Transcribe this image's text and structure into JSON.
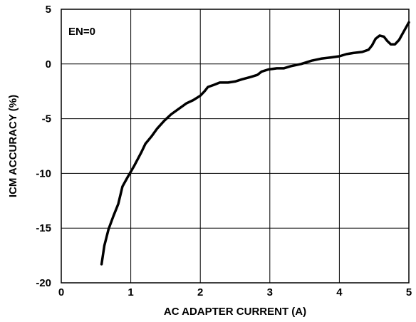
{
  "chart_data": {
    "type": "line",
    "xlabel": "AC ADAPTER CURRENT (A)",
    "ylabel": "ICM ACCURACY (%)",
    "xlim": [
      0,
      5
    ],
    "ylim": [
      -20,
      5
    ],
    "xticks": [
      0,
      1,
      2,
      3,
      4,
      5
    ],
    "yticks": [
      5,
      0,
      -5,
      -10,
      -15,
      -20
    ],
    "grid": true,
    "annotation": "EN=0",
    "series": [
      {
        "color": "#000000",
        "points": [
          [
            0.58,
            -18.3
          ],
          [
            0.62,
            -16.6
          ],
          [
            0.68,
            -15.1
          ],
          [
            0.75,
            -13.9
          ],
          [
            0.82,
            -12.8
          ],
          [
            0.88,
            -11.2
          ],
          [
            0.95,
            -10.4
          ],
          [
            1.05,
            -9.3
          ],
          [
            1.15,
            -8.1
          ],
          [
            1.21,
            -7.3
          ],
          [
            1.3,
            -6.6
          ],
          [
            1.38,
            -5.9
          ],
          [
            1.48,
            -5.2
          ],
          [
            1.58,
            -4.6
          ],
          [
            1.69,
            -4.1
          ],
          [
            1.8,
            -3.6
          ],
          [
            1.9,
            -3.3
          ],
          [
            2.0,
            -2.9
          ],
          [
            2.06,
            -2.5
          ],
          [
            2.11,
            -2.1
          ],
          [
            2.2,
            -1.9
          ],
          [
            2.28,
            -1.7
          ],
          [
            2.4,
            -1.7
          ],
          [
            2.5,
            -1.6
          ],
          [
            2.6,
            -1.4
          ],
          [
            2.72,
            -1.2
          ],
          [
            2.82,
            -1.0
          ],
          [
            2.88,
            -0.7
          ],
          [
            2.98,
            -0.5
          ],
          [
            3.1,
            -0.4
          ],
          [
            3.2,
            -0.4
          ],
          [
            3.3,
            -0.2
          ],
          [
            3.45,
            0.0
          ],
          [
            3.6,
            0.3
          ],
          [
            3.75,
            0.5
          ],
          [
            3.88,
            0.6
          ],
          [
            4.0,
            0.7
          ],
          [
            4.1,
            0.9
          ],
          [
            4.2,
            1.0
          ],
          [
            4.33,
            1.1
          ],
          [
            4.42,
            1.3
          ],
          [
            4.47,
            1.7
          ],
          [
            4.52,
            2.3
          ],
          [
            4.58,
            2.6
          ],
          [
            4.64,
            2.5
          ],
          [
            4.69,
            2.1
          ],
          [
            4.74,
            1.8
          ],
          [
            4.8,
            1.8
          ],
          [
            4.86,
            2.2
          ],
          [
            4.92,
            2.9
          ],
          [
            5.0,
            3.8
          ]
        ]
      }
    ]
  }
}
